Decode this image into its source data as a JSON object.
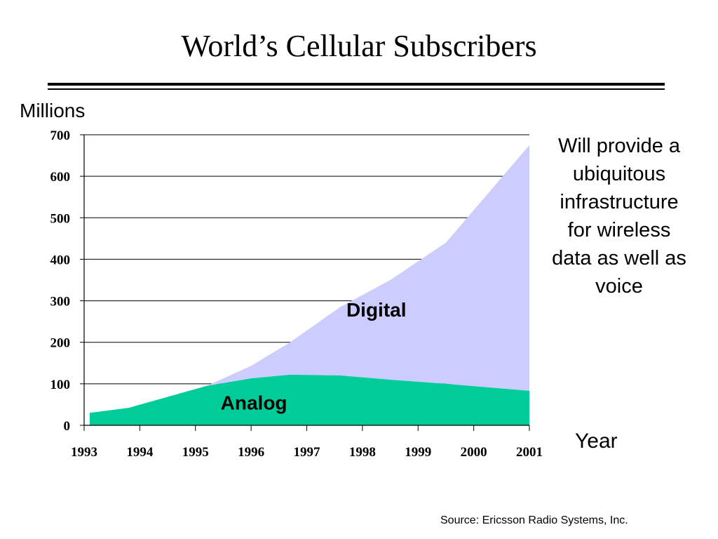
{
  "page": {
    "title": "World’s Cellular Subscribers",
    "note": "Will provide a ubiquitous infrastructure for wireless data as well as voice",
    "source": "Source: Ericsson Radio Systems, Inc."
  },
  "chart_data": {
    "type": "area",
    "ylabel": "Millions",
    "xlabel": "Year",
    "ylim": [
      0,
      700
    ],
    "yticks": [
      0,
      100,
      200,
      300,
      400,
      500,
      600,
      700
    ],
    "categories": [
      "1993",
      "1994",
      "1995",
      "1996",
      "1997",
      "1998",
      "1999",
      "2000",
      "2001"
    ],
    "grid": "horizontal",
    "stacked": true,
    "series": [
      {
        "name": "Analog",
        "color": "#00cc99",
        "x": [
          1993.1,
          1993.8,
          1995.2,
          1996.0,
          1996.7,
          1997.6,
          1998.5,
          1999.5,
          2001.0
        ],
        "values": [
          30,
          42,
          95,
          113,
          122,
          120,
          110,
          100,
          83
        ]
      },
      {
        "name": "Digital",
        "color": "#ccccff",
        "x": [
          1993.1,
          1993.8,
          1995.2,
          1996.0,
          1996.7,
          1997.6,
          1998.5,
          1999.5,
          2001.0
        ],
        "values": [
          0,
          0,
          0,
          30,
          78,
          165,
          240,
          340,
          592
        ]
      }
    ]
  }
}
